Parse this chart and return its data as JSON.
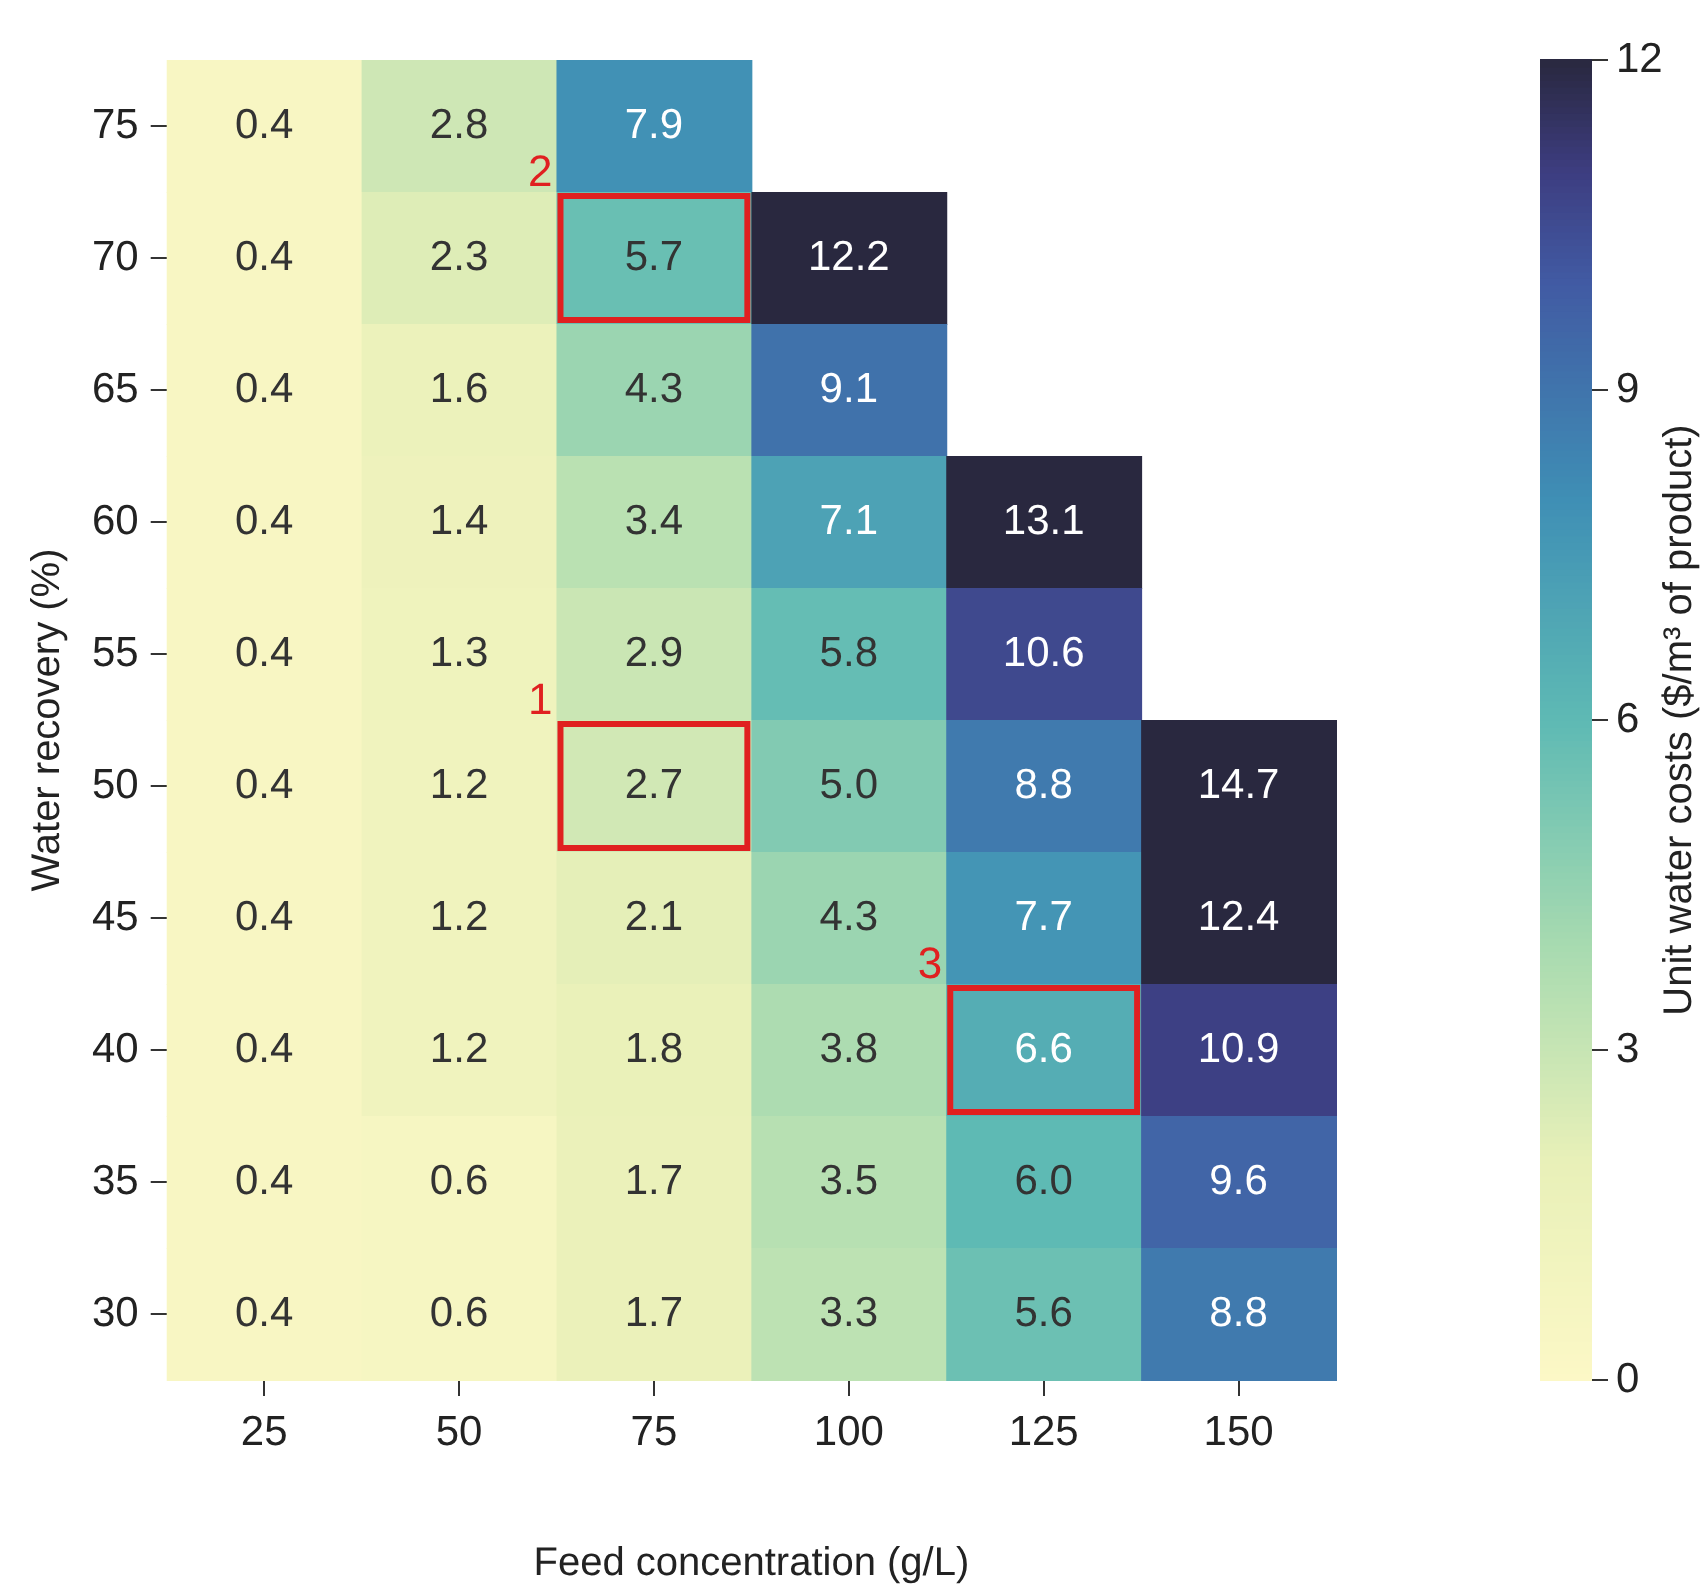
{
  "chart_data": {
    "type": "heatmap",
    "xlabel": "Feed concentration (g/L)",
    "ylabel": "Water recovery (%)",
    "clabel": "Unit water costs ($/m³ of product)",
    "categories": [
      "25",
      "50",
      "75",
      "100",
      "125",
      "150"
    ],
    "y_categories": [
      "75",
      "70",
      "65",
      "60",
      "55",
      "50",
      "45",
      "40",
      "35",
      "30"
    ],
    "cells": [
      [
        0.4,
        2.8,
        7.9,
        null,
        null,
        null
      ],
      [
        0.4,
        2.3,
        5.7,
        12.2,
        null,
        null
      ],
      [
        0.4,
        1.6,
        4.3,
        9.1,
        null,
        null
      ],
      [
        0.4,
        1.4,
        3.4,
        7.1,
        13.1,
        null
      ],
      [
        0.4,
        1.3,
        2.9,
        5.8,
        10.6,
        null
      ],
      [
        0.4,
        1.2,
        2.7,
        5.0,
        8.8,
        14.7
      ],
      [
        0.4,
        1.2,
        2.1,
        4.3,
        7.7,
        12.4
      ],
      [
        0.4,
        1.2,
        1.8,
        3.8,
        6.6,
        10.9
      ],
      [
        0.4,
        0.6,
        1.7,
        3.5,
        6.0,
        9.6
      ],
      [
        0.4,
        0.6,
        1.7,
        3.3,
        5.6,
        8.8
      ]
    ],
    "cell_labels": [
      [
        "0.4",
        "2.8",
        "7.9",
        null,
        null,
        null
      ],
      [
        "0.4",
        "2.3",
        "5.7",
        "12.2",
        null,
        null
      ],
      [
        "0.4",
        "1.6",
        "4.3",
        "9.1",
        null,
        null
      ],
      [
        "0.4",
        "1.4",
        "3.4",
        "7.1",
        "13.1",
        null
      ],
      [
        "0.4",
        "1.3",
        "2.9",
        "5.8",
        "10.6",
        null
      ],
      [
        "0.4",
        "1.2",
        "2.7",
        "5.0",
        "8.8",
        "14.7"
      ],
      [
        "0.4",
        "1.2",
        "2.1",
        "4.3",
        "7.7",
        "12.4"
      ],
      [
        "0.4",
        "1.2",
        "1.8",
        "3.8",
        "6.6",
        "10.9"
      ],
      [
        "0.4",
        "0.6",
        "1.7",
        "3.5",
        "6.0",
        "9.6"
      ],
      [
        "0.4",
        "0.6",
        "1.7",
        "3.3",
        "5.6",
        "8.8"
      ]
    ],
    "clim": [
      0,
      12
    ],
    "cticks": [
      0,
      3,
      6,
      9,
      12
    ],
    "annotations": [
      "1",
      "2",
      "3"
    ]
  }
}
